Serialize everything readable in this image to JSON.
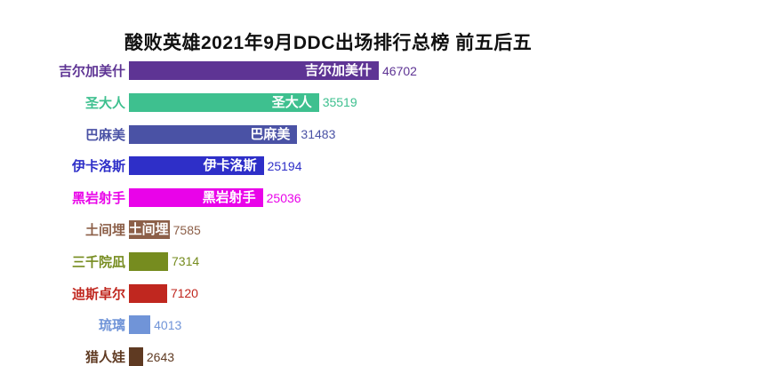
{
  "chart_data": {
    "type": "bar",
    "orientation": "horizontal",
    "title": "酸败英雄2021年9月DDC出场排行总榜 前五后五",
    "categories": [
      "吉尔加美什",
      "圣大人",
      "巴麻美",
      "伊卡洛斯",
      "黑岩射手",
      "土间埋",
      "三千院凪",
      "迪斯卓尔",
      "琉璃",
      "猎人娃"
    ],
    "values": [
      46702,
      35519,
      31483,
      25194,
      25036,
      7585,
      7314,
      7120,
      4013,
      2643
    ],
    "colors": [
      "#5e3494",
      "#3ec08f",
      "#4a52a5",
      "#2e2fc8",
      "#e903e9",
      "#8c5f48",
      "#768c1f",
      "#c0271f",
      "#7094d8",
      "#5f3a22"
    ],
    "xlim": [
      0,
      46702
    ],
    "value_labels": true,
    "bar_inner_labels": true,
    "grid": false,
    "legend": false,
    "background": "#ffffff",
    "title_color": "#111111"
  }
}
